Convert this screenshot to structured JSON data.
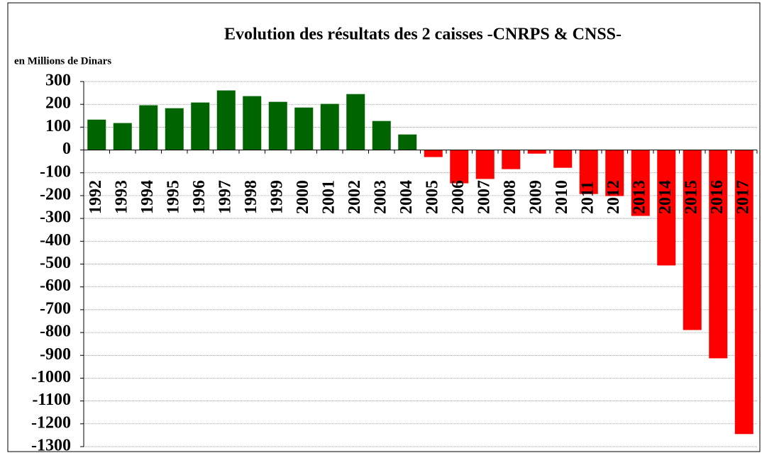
{
  "chart_data": {
    "type": "bar",
    "title": "Evolution des résultats des 2 caisses -CNRPS & CNSS-",
    "y_axis_label": "en Millions de Dinars",
    "categories": [
      "1992",
      "1993",
      "1994",
      "1995",
      "1996",
      "1997",
      "1998",
      "1999",
      "2000",
      "2001",
      "2002",
      "2003",
      "2004",
      "2005",
      "2006",
      "2007",
      "2008",
      "2009",
      "2010",
      "2011",
      "2012",
      "2013",
      "2014",
      "2015",
      "2016",
      "2017"
    ],
    "values": [
      133,
      118,
      196,
      183,
      208,
      261,
      236,
      211,
      186,
      202,
      245,
      127,
      68,
      -31,
      -146,
      -127,
      -84,
      -16,
      -78,
      -193,
      -202,
      -289,
      -506,
      -789,
      -913,
      -1245
    ],
    "positive_color": "#006400",
    "negative_color": "#ff0000",
    "ylim": [
      -1300,
      300
    ],
    "yticks": [
      300,
      200,
      100,
      0,
      -100,
      -200,
      -300,
      -400,
      -500,
      -600,
      -700,
      -800,
      -900,
      -1000,
      -1100,
      -1200,
      -1300
    ],
    "grid": true
  }
}
